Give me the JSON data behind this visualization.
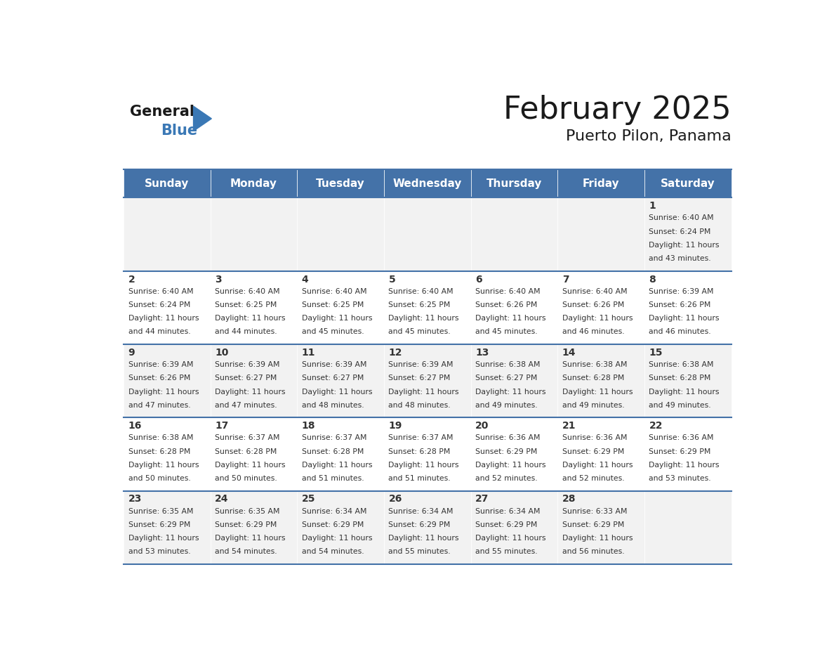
{
  "title": "February 2025",
  "subtitle": "Puerto Pilon, Panama",
  "days_of_week": [
    "Sunday",
    "Monday",
    "Tuesday",
    "Wednesday",
    "Thursday",
    "Friday",
    "Saturday"
  ],
  "header_bg": "#4472A8",
  "header_text": "#FFFFFF",
  "cell_bg_odd": "#F2F2F2",
  "cell_bg_even": "#FFFFFF",
  "day_num_color": "#333333",
  "info_text_color": "#333333",
  "border_color": "#4472A8",
  "bg_color": "#FFFFFF",
  "calendar": [
    [
      null,
      null,
      null,
      null,
      null,
      null,
      1
    ],
    [
      2,
      3,
      4,
      5,
      6,
      7,
      8
    ],
    [
      9,
      10,
      11,
      12,
      13,
      14,
      15
    ],
    [
      16,
      17,
      18,
      19,
      20,
      21,
      22
    ],
    [
      23,
      24,
      25,
      26,
      27,
      28,
      null
    ]
  ],
  "sun_data": {
    "1": {
      "sunrise": "6:40 AM",
      "sunset": "6:24 PM",
      "daylight_h": "11 hours",
      "daylight_m": "43 minutes."
    },
    "2": {
      "sunrise": "6:40 AM",
      "sunset": "6:24 PM",
      "daylight_h": "11 hours",
      "daylight_m": "44 minutes."
    },
    "3": {
      "sunrise": "6:40 AM",
      "sunset": "6:25 PM",
      "daylight_h": "11 hours",
      "daylight_m": "44 minutes."
    },
    "4": {
      "sunrise": "6:40 AM",
      "sunset": "6:25 PM",
      "daylight_h": "11 hours",
      "daylight_m": "45 minutes."
    },
    "5": {
      "sunrise": "6:40 AM",
      "sunset": "6:25 PM",
      "daylight_h": "11 hours",
      "daylight_m": "45 minutes."
    },
    "6": {
      "sunrise": "6:40 AM",
      "sunset": "6:26 PM",
      "daylight_h": "11 hours",
      "daylight_m": "45 minutes."
    },
    "7": {
      "sunrise": "6:40 AM",
      "sunset": "6:26 PM",
      "daylight_h": "11 hours",
      "daylight_m": "46 minutes."
    },
    "8": {
      "sunrise": "6:39 AM",
      "sunset": "6:26 PM",
      "daylight_h": "11 hours",
      "daylight_m": "46 minutes."
    },
    "9": {
      "sunrise": "6:39 AM",
      "sunset": "6:26 PM",
      "daylight_h": "11 hours",
      "daylight_m": "47 minutes."
    },
    "10": {
      "sunrise": "6:39 AM",
      "sunset": "6:27 PM",
      "daylight_h": "11 hours",
      "daylight_m": "47 minutes."
    },
    "11": {
      "sunrise": "6:39 AM",
      "sunset": "6:27 PM",
      "daylight_h": "11 hours",
      "daylight_m": "48 minutes."
    },
    "12": {
      "sunrise": "6:39 AM",
      "sunset": "6:27 PM",
      "daylight_h": "11 hours",
      "daylight_m": "48 minutes."
    },
    "13": {
      "sunrise": "6:38 AM",
      "sunset": "6:27 PM",
      "daylight_h": "11 hours",
      "daylight_m": "49 minutes."
    },
    "14": {
      "sunrise": "6:38 AM",
      "sunset": "6:28 PM",
      "daylight_h": "11 hours",
      "daylight_m": "49 minutes."
    },
    "15": {
      "sunrise": "6:38 AM",
      "sunset": "6:28 PM",
      "daylight_h": "11 hours",
      "daylight_m": "49 minutes."
    },
    "16": {
      "sunrise": "6:38 AM",
      "sunset": "6:28 PM",
      "daylight_h": "11 hours",
      "daylight_m": "50 minutes."
    },
    "17": {
      "sunrise": "6:37 AM",
      "sunset": "6:28 PM",
      "daylight_h": "11 hours",
      "daylight_m": "50 minutes."
    },
    "18": {
      "sunrise": "6:37 AM",
      "sunset": "6:28 PM",
      "daylight_h": "11 hours",
      "daylight_m": "51 minutes."
    },
    "19": {
      "sunrise": "6:37 AM",
      "sunset": "6:28 PM",
      "daylight_h": "11 hours",
      "daylight_m": "51 minutes."
    },
    "20": {
      "sunrise": "6:36 AM",
      "sunset": "6:29 PM",
      "daylight_h": "11 hours",
      "daylight_m": "52 minutes."
    },
    "21": {
      "sunrise": "6:36 AM",
      "sunset": "6:29 PM",
      "daylight_h": "11 hours",
      "daylight_m": "52 minutes."
    },
    "22": {
      "sunrise": "6:36 AM",
      "sunset": "6:29 PM",
      "daylight_h": "11 hours",
      "daylight_m": "53 minutes."
    },
    "23": {
      "sunrise": "6:35 AM",
      "sunset": "6:29 PM",
      "daylight_h": "11 hours",
      "daylight_m": "53 minutes."
    },
    "24": {
      "sunrise": "6:35 AM",
      "sunset": "6:29 PM",
      "daylight_h": "11 hours",
      "daylight_m": "54 minutes."
    },
    "25": {
      "sunrise": "6:34 AM",
      "sunset": "6:29 PM",
      "daylight_h": "11 hours",
      "daylight_m": "54 minutes."
    },
    "26": {
      "sunrise": "6:34 AM",
      "sunset": "6:29 PM",
      "daylight_h": "11 hours",
      "daylight_m": "55 minutes."
    },
    "27": {
      "sunrise": "6:34 AM",
      "sunset": "6:29 PM",
      "daylight_h": "11 hours",
      "daylight_m": "55 minutes."
    },
    "28": {
      "sunrise": "6:33 AM",
      "sunset": "6:29 PM",
      "daylight_h": "11 hours",
      "daylight_m": "56 minutes."
    }
  }
}
